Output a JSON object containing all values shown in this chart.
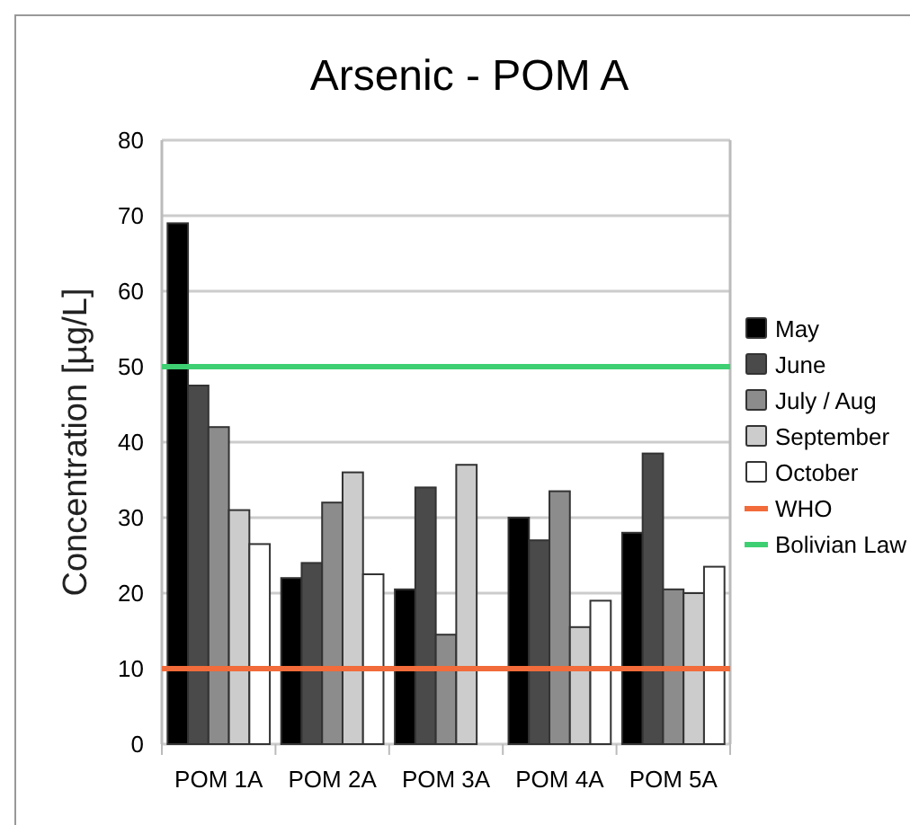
{
  "chart_data": {
    "type": "bar",
    "title": "Arsenic - POM A",
    "ylabel": "Concentration [µg/L]",
    "categories": [
      "POM 1A",
      "POM 2A",
      "POM 3A",
      "POM 4A",
      "POM 5A"
    ],
    "series": [
      {
        "name": "May",
        "color": "#000000",
        "values": [
          69,
          22,
          20.5,
          30,
          28
        ]
      },
      {
        "name": "June",
        "color": "#4a4a4a",
        "values": [
          47.5,
          24,
          34,
          27,
          38.5
        ]
      },
      {
        "name": "July / Aug",
        "color": "#8c8c8c",
        "values": [
          42,
          32,
          14.5,
          33.5,
          20.5
        ]
      },
      {
        "name": "September",
        "color": "#cccccc",
        "values": [
          31,
          36,
          37,
          15.5,
          20
        ]
      },
      {
        "name": "October",
        "color": "#ffffff",
        "values": [
          26.5,
          22.5,
          null,
          19,
          23.5
        ]
      }
    ],
    "ref_lines": [
      {
        "axis": "y",
        "value": 10,
        "label": "WHO",
        "color": "#f26b3a"
      },
      {
        "axis": "y",
        "value": 50,
        "label": "Bolivian Law",
        "color": "#3ecf73"
      }
    ],
    "ylim": [
      0,
      80
    ],
    "yticks": [
      0,
      10,
      20,
      30,
      40,
      50,
      60,
      70,
      80
    ],
    "grid": "y",
    "legend": "right"
  }
}
